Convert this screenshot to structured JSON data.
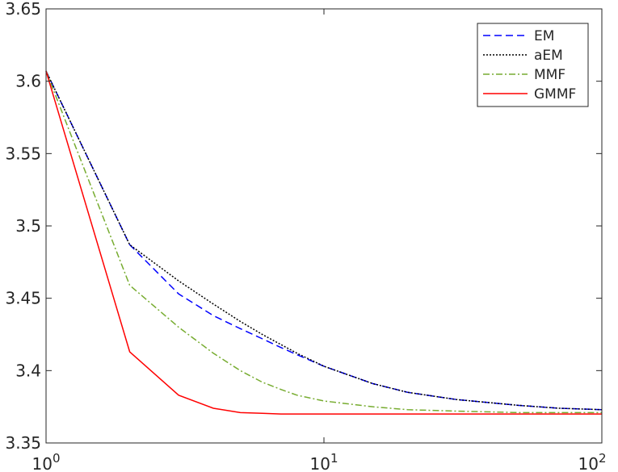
{
  "chart_data": {
    "type": "line",
    "xscale": "log",
    "xlim": [
      1,
      100
    ],
    "ylim": [
      3.35,
      3.65
    ],
    "grid": false,
    "legend_placement": "top-right",
    "x_ticks": [
      {
        "value": 1,
        "base": "10",
        "exp": "0"
      },
      {
        "value": 10,
        "base": "10",
        "exp": "1"
      },
      {
        "value": 100,
        "base": "10",
        "exp": "2"
      }
    ],
    "y_ticks": [
      "3.35",
      "3.4",
      "3.45",
      "3.5",
      "3.55",
      "3.6",
      "3.65"
    ],
    "series": [
      {
        "name": "EM",
        "color": "#0000ff",
        "dash": "dashed",
        "x": [
          1,
          2,
          3,
          4,
          5,
          6,
          7,
          8,
          10,
          15,
          20,
          30,
          50,
          70,
          100
        ],
        "y": [
          3.607,
          3.487,
          3.453,
          3.438,
          3.429,
          3.422,
          3.416,
          3.411,
          3.403,
          3.391,
          3.385,
          3.38,
          3.376,
          3.374,
          3.373
        ]
      },
      {
        "name": "aEM",
        "color": "#000000",
        "dash": "dotted",
        "x": [
          1,
          2,
          3,
          4,
          5,
          6,
          7,
          8,
          10,
          15,
          20,
          30,
          50,
          70,
          100
        ],
        "y": [
          3.607,
          3.487,
          3.462,
          3.446,
          3.434,
          3.425,
          3.418,
          3.412,
          3.403,
          3.391,
          3.385,
          3.38,
          3.376,
          3.374,
          3.373
        ]
      },
      {
        "name": "MMF",
        "color": "#77ac30",
        "dash": "dashdot",
        "x": [
          1,
          2,
          3,
          4,
          5,
          6,
          7,
          8,
          10,
          15,
          20,
          30,
          50,
          70,
          100
        ],
        "y": [
          3.607,
          3.459,
          3.43,
          3.412,
          3.4,
          3.392,
          3.387,
          3.383,
          3.379,
          3.375,
          3.373,
          3.372,
          3.371,
          3.371,
          3.371
        ]
      },
      {
        "name": "GMMF",
        "color": "#ff0000",
        "dash": "solid",
        "x": [
          1,
          2,
          3,
          4,
          5,
          6,
          7,
          8,
          10,
          15,
          20,
          30,
          50,
          70,
          100
        ],
        "y": [
          3.607,
          3.413,
          3.383,
          3.374,
          3.371,
          3.3705,
          3.37,
          3.37,
          3.37,
          3.37,
          3.37,
          3.37,
          3.37,
          3.37,
          3.37
        ]
      }
    ]
  }
}
